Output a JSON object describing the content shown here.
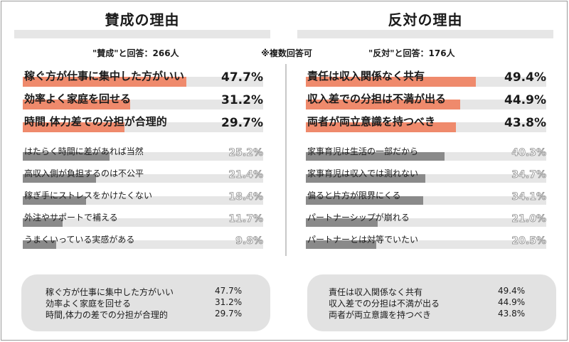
{
  "note": "※複数回答可",
  "colors": {
    "highlight": "#ef8a6c",
    "secondary": "#8a8a8a",
    "track": "#e6e6e6"
  },
  "chart_data": [
    {
      "type": "bar",
      "orientation": "horizontal",
      "title": "賛成の理由",
      "subtitle": "\"賛成\"と回答：266人",
      "categories": [
        "稼ぐ方が仕事に集中した方がいい",
        "効率よく家庭を回せる",
        "時間,体力差での分担が合理的",
        "はたらく時間に差があれば当然",
        "高収入側が負担するのは不公平",
        "稼ぎ手にストレスをかけたくない",
        "外注やサポートで補える",
        "うまくいっている実感がある"
      ],
      "values": [
        47.7,
        31.2,
        29.7,
        25.2,
        21.4,
        18.4,
        11.7,
        9.8
      ],
      "value_labels": [
        "47.7%",
        "31.2%",
        "29.7%",
        "25.2%",
        "21.4%",
        "18.4%",
        "11.7%",
        "9.8%"
      ],
      "highlighted_top": 3,
      "summary": [
        {
          "label": "稼ぐ方が仕事に集中した方がいい",
          "value": "47.7%"
        },
        {
          "label": "効率よく家庭を回せる",
          "value": "31.2%"
        },
        {
          "label": "時間,体力の差での分担が合理的",
          "value": "29.7%"
        }
      ]
    },
    {
      "type": "bar",
      "orientation": "horizontal",
      "title": "反対の理由",
      "subtitle": "\"反対\"と回答：176人",
      "categories": [
        "責任は収入関係なく共有",
        "収入差での分担は不満が出る",
        "両者が両立意識を持つべき",
        "家事育児は生活の一部だから",
        "家事育児は収入では測れない",
        "偏ると片方が限界にくる",
        "パートナーシップが崩れる",
        "パートナーとは対等でいたい"
      ],
      "values": [
        49.4,
        44.9,
        43.8,
        40.3,
        34.7,
        34.1,
        21.0,
        20.5
      ],
      "value_labels": [
        "49.4%",
        "44.9%",
        "43.8%",
        "40.3%",
        "34.7%",
        "34.1%",
        "21.0%",
        "20.5%"
      ],
      "highlighted_top": 3,
      "summary": [
        {
          "label": "責任は収入関係なく共有",
          "value": "49.4%"
        },
        {
          "label": "収入差での分担は不満が出る",
          "value": "44.9%"
        },
        {
          "label": "両者が両立意識を持つべき",
          "value": "43.8%"
        }
      ]
    }
  ]
}
